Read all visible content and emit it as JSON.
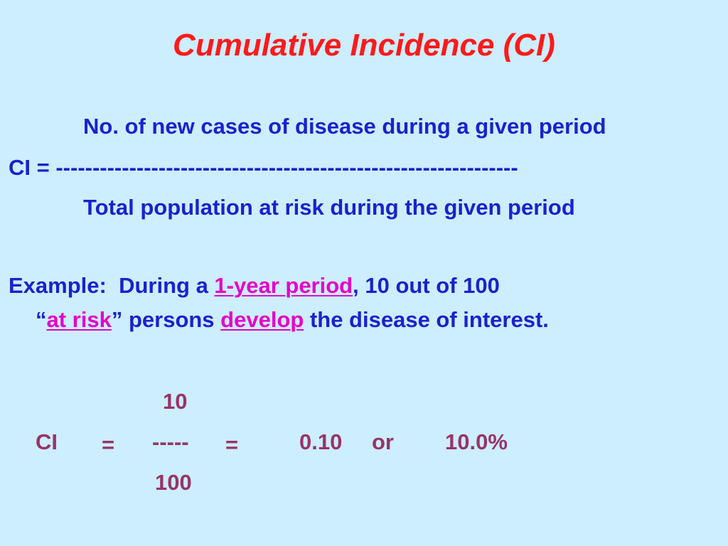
{
  "title": "Cumulative Incidence (CI)",
  "formula": {
    "numerator": "No. of new cases of disease during a given period",
    "lhs": "CI = ",
    "dashes": "---------------------------------------------------------------",
    "denominator": "Total population at risk during the given period"
  },
  "example": {
    "label": "Example:",
    "line1_pre": "During a ",
    "line1_link": "1-year period",
    "line1_post": ", 10 out of 100",
    "line2_open_quote": "“",
    "line2_link1": "at risk",
    "line2_close_quote": "”",
    "line2_mid": " persons ",
    "line2_link2": "develop",
    "line2_post": " the disease of interest."
  },
  "calc": {
    "numerator": "10",
    "ci": "CI",
    "eq1": "=",
    "dashes": "-----",
    "eq2": "=",
    "decimal": "0.10",
    "or": "or",
    "percent": "10.0%",
    "denominator": "100"
  },
  "colors": {
    "background": "#cceeff",
    "title": "#ff1a1a",
    "body_text": "#1a22cc",
    "emphasis": "#e600c8",
    "calculation": "#993366"
  }
}
